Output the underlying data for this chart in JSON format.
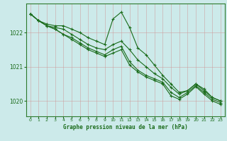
{
  "xlabel": "Graphe pression niveau de la mer (hPa)",
  "bg_color": "#cceaea",
  "grid_color": "#aacccc",
  "line_color": "#1a6b1a",
  "marker": "+",
  "ylim": [
    1019.55,
    1022.85
  ],
  "yticks": [
    1020,
    1021,
    1022
  ],
  "xlim": [
    -0.5,
    23.5
  ],
  "xticks": [
    0,
    1,
    2,
    3,
    4,
    5,
    6,
    7,
    8,
    9,
    10,
    11,
    12,
    13,
    14,
    15,
    16,
    17,
    18,
    19,
    20,
    21,
    22,
    23
  ],
  "series": [
    [
      1022.55,
      1022.35,
      1022.25,
      1022.2,
      1022.2,
      1022.1,
      1022.0,
      1021.85,
      1021.75,
      1021.65,
      1022.4,
      1022.6,
      1022.15,
      1021.55,
      1021.35,
      1021.05,
      1020.75,
      1020.5,
      1020.25,
      1020.3,
      1020.5,
      1020.35,
      1020.1,
      1020.0
    ],
    [
      1022.55,
      1022.35,
      1022.2,
      1022.15,
      1022.1,
      1021.95,
      1021.8,
      1021.65,
      1021.55,
      1021.5,
      1021.65,
      1021.75,
      1021.5,
      1021.2,
      1021.0,
      1020.8,
      1020.65,
      1020.4,
      1020.2,
      1020.3,
      1020.5,
      1020.3,
      1020.1,
      1020.0
    ],
    [
      1022.55,
      1022.35,
      1022.2,
      1022.1,
      1021.95,
      1021.85,
      1021.7,
      1021.55,
      1021.45,
      1021.35,
      1021.5,
      1021.6,
      1021.15,
      1020.9,
      1020.75,
      1020.65,
      1020.55,
      1020.25,
      1020.1,
      1020.25,
      1020.45,
      1020.25,
      1020.05,
      1019.95
    ],
    [
      1022.55,
      1022.35,
      1022.2,
      1022.1,
      1021.95,
      1021.8,
      1021.65,
      1021.5,
      1021.4,
      1021.3,
      1021.4,
      1021.5,
      1021.05,
      1020.85,
      1020.7,
      1020.6,
      1020.5,
      1020.15,
      1020.05,
      1020.2,
      1020.42,
      1020.2,
      1020.0,
      1019.9
    ]
  ]
}
